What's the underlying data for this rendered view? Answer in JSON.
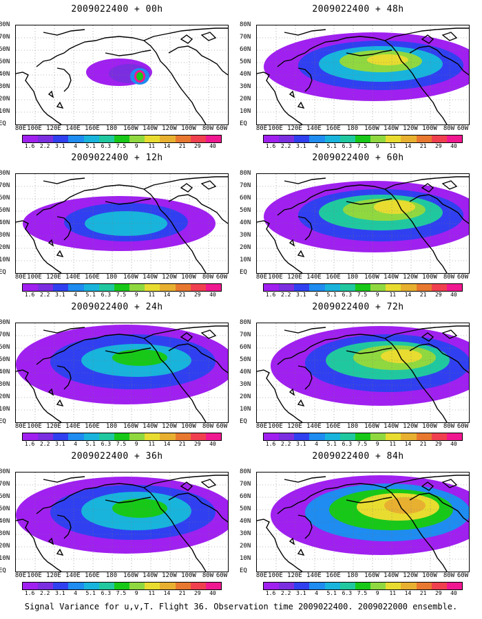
{
  "panels": [
    {
      "title": "2009022400 + 00h"
    },
    {
      "title": "2009022400 + 48h"
    },
    {
      "title": "2009022400 + 12h"
    },
    {
      "title": "2009022400 + 60h"
    },
    {
      "title": "2009022400 + 24h"
    },
    {
      "title": "2009022400 + 72h"
    },
    {
      "title": "2009022400 + 36h"
    },
    {
      "title": "2009022400 + 84h"
    }
  ],
  "latitude_labels": [
    "80N",
    "70N",
    "60N",
    "50N",
    "40N",
    "30N",
    "20N",
    "10N",
    "EQ"
  ],
  "longitude_labels": [
    "80E",
    "100E",
    "120E",
    "140E",
    "160E",
    "180",
    "160W",
    "140W",
    "120W",
    "100W",
    "80W",
    "60W"
  ],
  "colorbar": {
    "levels": [
      "1.6",
      "2.2",
      "3.1",
      "4",
      "5.1",
      "6.3",
      "7.5",
      "9",
      "11",
      "14",
      "21",
      "29",
      "40"
    ],
    "colors": [
      "#a020f0",
      "#7b2ee0",
      "#3040f0",
      "#1e8cf0",
      "#18b4dc",
      "#20c8a0",
      "#18c818",
      "#90d840",
      "#e8dc30",
      "#e8b030",
      "#e87830",
      "#f04050",
      "#f01890"
    ]
  },
  "caption": "Signal Variance for u,v,T. Flight 36. Observation time 2009022400. 2009022000 ensemble."
}
